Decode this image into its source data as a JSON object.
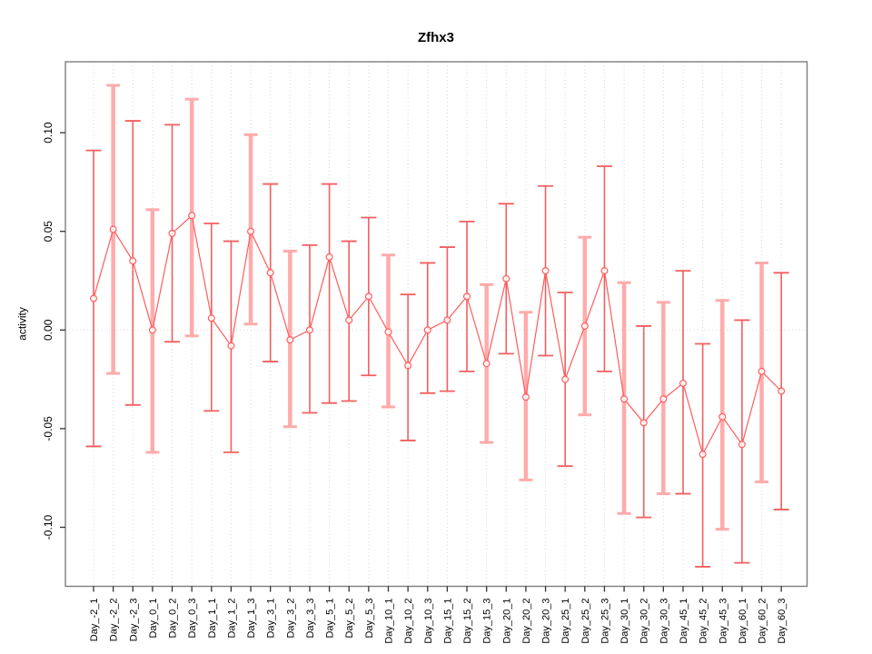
{
  "title": "Zfhx3",
  "chart_data": {
    "type": "scatter",
    "subtype": "points-with-error-bars",
    "title": "Zfhx3",
    "xlabel": "",
    "ylabel": "activity",
    "ylim": [
      -0.13,
      0.13
    ],
    "grid": "vertical-dotted-plus-zero-line",
    "legend": "none",
    "yticks": [
      {
        "v": 0.1,
        "label": "0.10"
      },
      {
        "v": 0.05,
        "label": "0.05"
      },
      {
        "v": 0.0,
        "label": "0.00"
      },
      {
        "v": -0.05,
        "label": "-0.05"
      },
      {
        "v": -0.1,
        "label": "-0.10"
      }
    ],
    "categories": [
      "Day_-2_1",
      "Day_-2_2",
      "Day_-2_3",
      "Day_0_1",
      "Day_0_2",
      "Day_0_3",
      "Day_1_1",
      "Day_1_2",
      "Day_1_3",
      "Day_3_1",
      "Day_3_2",
      "Day_3_3",
      "Day_5_1",
      "Day_5_2",
      "Day_5_3",
      "Day_10_1",
      "Day_10_2",
      "Day_10_3",
      "Day_15_1",
      "Day_15_2",
      "Day_15_3",
      "Day_20_1",
      "Day_20_2",
      "Day_20_3",
      "Day_25_1",
      "Day_25_2",
      "Day_25_3",
      "Day_30_1",
      "Day_30_2",
      "Day_30_3",
      "Day_45_1",
      "Day_45_2",
      "Day_45_3",
      "Day_60_1",
      "Day_60_2",
      "Day_60_3"
    ],
    "series": [
      {
        "name": "activity",
        "points": [
          {
            "label": "Day_-2_1",
            "value": 0.016,
            "lower": -0.059,
            "upper": 0.091,
            "thick": false
          },
          {
            "label": "Day_-2_2",
            "value": 0.051,
            "lower": -0.022,
            "upper": 0.124,
            "thick": true
          },
          {
            "label": "Day_-2_3",
            "value": 0.035,
            "lower": -0.038,
            "upper": 0.106,
            "thick": false
          },
          {
            "label": "Day_0_1",
            "value": 0.0,
            "lower": -0.062,
            "upper": 0.061,
            "thick": true
          },
          {
            "label": "Day_0_2",
            "value": 0.049,
            "lower": -0.006,
            "upper": 0.104,
            "thick": false
          },
          {
            "label": "Day_0_3",
            "value": 0.058,
            "lower": -0.003,
            "upper": 0.117,
            "thick": true
          },
          {
            "label": "Day_1_1",
            "value": 0.006,
            "lower": -0.041,
            "upper": 0.054,
            "thick": false
          },
          {
            "label": "Day_1_2",
            "value": -0.008,
            "lower": -0.062,
            "upper": 0.045,
            "thick": false
          },
          {
            "label": "Day_1_3",
            "value": 0.05,
            "lower": 0.003,
            "upper": 0.099,
            "thick": true
          },
          {
            "label": "Day_3_1",
            "value": 0.029,
            "lower": -0.016,
            "upper": 0.074,
            "thick": false
          },
          {
            "label": "Day_3_2",
            "value": -0.005,
            "lower": -0.049,
            "upper": 0.04,
            "thick": true
          },
          {
            "label": "Day_3_3",
            "value": 0.0,
            "lower": -0.042,
            "upper": 0.043,
            "thick": false
          },
          {
            "label": "Day_5_1",
            "value": 0.037,
            "lower": -0.037,
            "upper": 0.074,
            "thick": false
          },
          {
            "label": "Day_5_2",
            "value": 0.005,
            "lower": -0.036,
            "upper": 0.045,
            "thick": false
          },
          {
            "label": "Day_5_3",
            "value": 0.017,
            "lower": -0.023,
            "upper": 0.057,
            "thick": false
          },
          {
            "label": "Day_10_1",
            "value": -0.001,
            "lower": -0.039,
            "upper": 0.038,
            "thick": true
          },
          {
            "label": "Day_10_2",
            "value": -0.018,
            "lower": -0.056,
            "upper": 0.018,
            "thick": false
          },
          {
            "label": "Day_10_3",
            "value": 0.0,
            "lower": -0.032,
            "upper": 0.034,
            "thick": false
          },
          {
            "label": "Day_15_1",
            "value": 0.005,
            "lower": -0.031,
            "upper": 0.042,
            "thick": false
          },
          {
            "label": "Day_15_2",
            "value": 0.017,
            "lower": -0.021,
            "upper": 0.055,
            "thick": false
          },
          {
            "label": "Day_15_3",
            "value": -0.017,
            "lower": -0.057,
            "upper": 0.023,
            "thick": true
          },
          {
            "label": "Day_20_1",
            "value": 0.026,
            "lower": -0.012,
            "upper": 0.064,
            "thick": false
          },
          {
            "label": "Day_20_2",
            "value": -0.034,
            "lower": -0.076,
            "upper": 0.009,
            "thick": true
          },
          {
            "label": "Day_20_3",
            "value": 0.03,
            "lower": -0.013,
            "upper": 0.073,
            "thick": false
          },
          {
            "label": "Day_25_1",
            "value": -0.025,
            "lower": -0.069,
            "upper": 0.019,
            "thick": false
          },
          {
            "label": "Day_25_2",
            "value": 0.002,
            "lower": -0.043,
            "upper": 0.047,
            "thick": true
          },
          {
            "label": "Day_25_3",
            "value": 0.03,
            "lower": -0.021,
            "upper": 0.083,
            "thick": false
          },
          {
            "label": "Day_30_1",
            "value": -0.035,
            "lower": -0.093,
            "upper": 0.024,
            "thick": true
          },
          {
            "label": "Day_30_2",
            "value": -0.047,
            "lower": -0.095,
            "upper": 0.002,
            "thick": false
          },
          {
            "label": "Day_30_3",
            "value": -0.035,
            "lower": -0.083,
            "upper": 0.014,
            "thick": true
          },
          {
            "label": "Day_45_1",
            "value": -0.027,
            "lower": -0.083,
            "upper": 0.03,
            "thick": false
          },
          {
            "label": "Day_45_2",
            "value": -0.063,
            "lower": -0.12,
            "upper": -0.007,
            "thick": false
          },
          {
            "label": "Day_45_3",
            "value": -0.044,
            "lower": -0.101,
            "upper": 0.015,
            "thick": true
          },
          {
            "label": "Day_60_1",
            "value": -0.058,
            "lower": -0.118,
            "upper": 0.005,
            "thick": false
          },
          {
            "label": "Day_60_2",
            "value": -0.021,
            "lower": -0.077,
            "upper": 0.034,
            "thick": true
          },
          {
            "label": "Day_60_3",
            "value": -0.031,
            "lower": -0.091,
            "upper": 0.029,
            "thick": false
          }
        ]
      }
    ],
    "colors": {
      "line": "#ff5c5c",
      "point_stroke": "#ff5c5c",
      "errorbar_thick": "#ffabab",
      "errorbar_thin": "#f express25f5f",
      "grid": "#d9d9d9",
      "zero_line": "#d9d9d9",
      "box": "#7d7d7d",
      "tick": "#333333",
      "text": "#000000"
    }
  }
}
